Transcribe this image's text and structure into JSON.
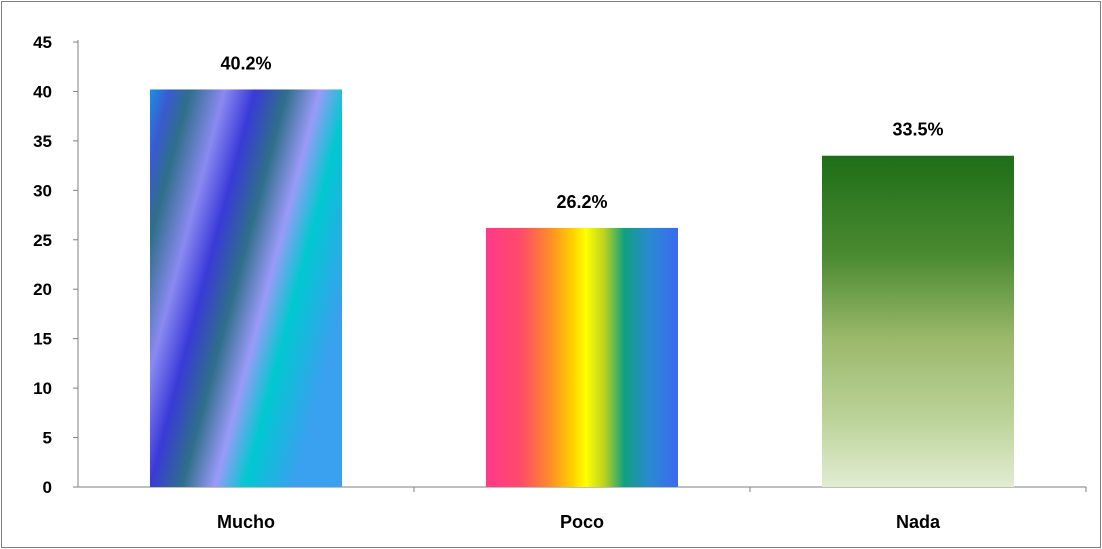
{
  "chart_data": {
    "type": "bar",
    "categories": [
      "Mucho",
      "Poco",
      "Nada"
    ],
    "values": [
      40.2,
      26.2,
      33.5
    ],
    "data_labels": [
      "40.2%",
      "26.2%",
      "33.5%"
    ],
    "ylim": [
      0,
      45
    ],
    "yticks": [
      "0",
      "5",
      "10",
      "15",
      "20",
      "25",
      "30",
      "35",
      "40",
      "45"
    ],
    "title": "",
    "xlabel": "",
    "ylabel": "",
    "grid": false,
    "legend": "none",
    "bar_styles": [
      "diagonal-blue-gradient",
      "rainbow-gradient",
      "green-fade-gradient"
    ]
  }
}
